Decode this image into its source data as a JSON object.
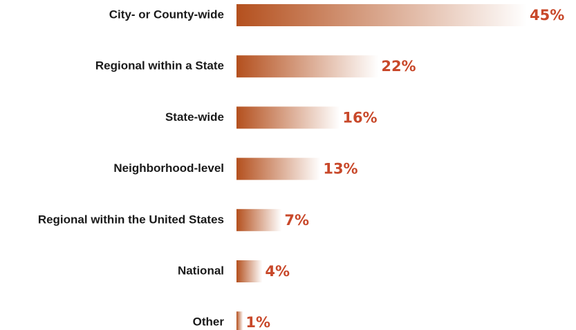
{
  "chart_data": {
    "type": "bar",
    "orientation": "horizontal",
    "categories": [
      "City- or County-wide",
      "Regional within a State",
      "State-wide",
      "Neighborhood-level",
      "Regional within the United States",
      "National",
      "Other"
    ],
    "values": [
      45,
      22,
      16,
      13,
      7,
      4,
      1
    ],
    "value_labels": [
      "45%",
      "22%",
      "16%",
      "13%",
      "7%",
      "4%",
      "1%"
    ],
    "unit": "%",
    "title": "",
    "xlabel": "",
    "ylabel": "",
    "xlim": [
      0,
      45
    ],
    "grid": false,
    "legend": "none"
  },
  "colors": {
    "bar_start": "#b4501e",
    "bar_end": "#ffffff",
    "value_label": "#c8482a",
    "category_label": "#1a1a1a"
  }
}
